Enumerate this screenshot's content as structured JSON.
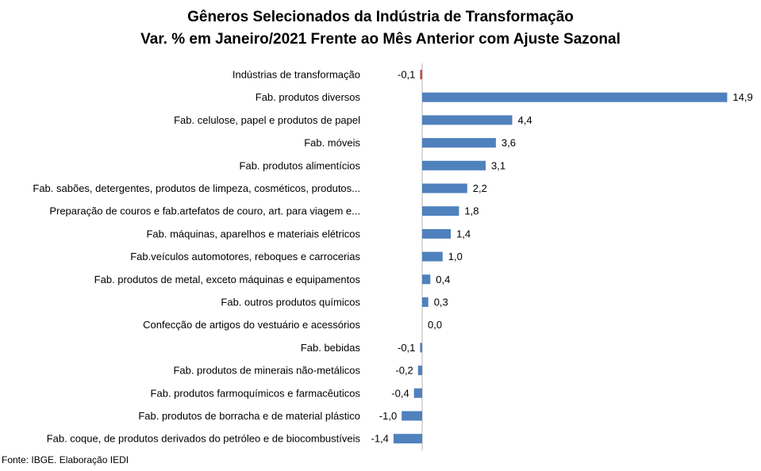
{
  "chart_data": {
    "type": "bar",
    "orientation": "horizontal",
    "title": "Gêneros Selecionados da Indústria de Transformação",
    "subtitle": "Var. % em Janeiro/2021 Frente ao Mês Anterior com Ajuste Sazonal",
    "xlabel": "",
    "ylabel": "",
    "grid": false,
    "legend": "none",
    "xlim": [
      -1.6,
      15.2
    ],
    "categories": [
      "Indústrias de transformação",
      "Fab. produtos diversos",
      "Fab. celulose, papel e produtos de papel",
      "Fab. móveis",
      "Fab. produtos alimentícios",
      "Fab. sabões, detergentes, produtos de limpeza, cosméticos, produtos...",
      "Preparação de couros e fab.artefatos de couro, art. para viagem e...",
      "Fab. máquinas, aparelhos e materiais elétricos",
      "Fab.veículos automotores, reboques e carrocerias",
      "Fab. produtos de metal, exceto máquinas e equipamentos",
      "Fab. outros produtos químicos",
      "Confecção de artigos do vestuário e acessórios",
      "Fab. bebidas",
      "Fab. produtos de minerais não-metálicos",
      "Fab. produtos farmoquímicos e farmacêuticos",
      "Fab. produtos de borracha e de material plástico",
      "Fab. coque, de produtos derivados do petróleo e de biocombustíveis"
    ],
    "values": [
      -0.1,
      14.9,
      4.4,
      3.6,
      3.1,
      2.2,
      1.8,
      1.4,
      1.0,
      0.4,
      0.3,
      0.0,
      -0.1,
      -0.2,
      -0.4,
      -1.0,
      -1.4
    ],
    "value_labels": [
      "-0,1",
      "14,9",
      "4,4",
      "3,6",
      "3,1",
      "2,2",
      "1,8",
      "1,4",
      "1,0",
      "0,4",
      "0,3",
      "0,0",
      "-0,1",
      "-0,2",
      "-0,4",
      "-1,0",
      "-1,4"
    ],
    "highlight_index": 0
  },
  "colors": {
    "bar": "#4f81bd",
    "highlight": "#c0504d",
    "axis": "#b3b3b3"
  },
  "footer": {
    "source": "Fonte: IBGE. Elaboração IEDI"
  }
}
